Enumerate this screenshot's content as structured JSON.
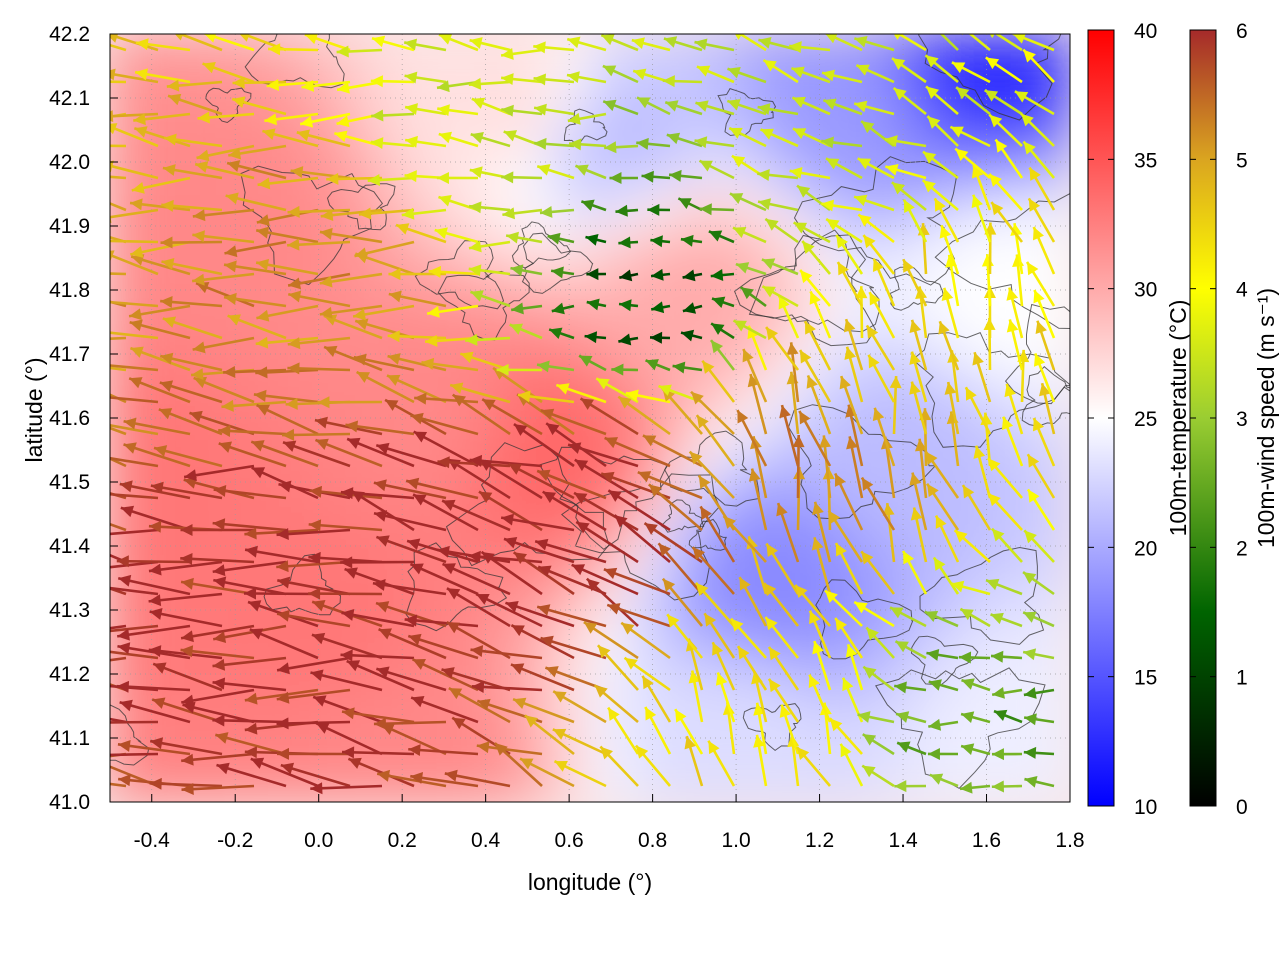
{
  "chart_data": {
    "type": "heatmap",
    "title": "",
    "xlabel": "longitude (°)",
    "ylabel": "latitude (°)",
    "xlim": [
      -0.5,
      1.8
    ],
    "ylim": [
      41.0,
      42.2
    ],
    "xticks": [
      "-0.4",
      "-0.2",
      "0.0",
      "0.2",
      "0.4",
      "0.6",
      "0.8",
      "1.0",
      "1.2",
      "1.4",
      "1.6",
      "1.8"
    ],
    "yticks": [
      "41.0",
      "41.1",
      "41.2",
      "41.3",
      "41.4",
      "41.5",
      "41.6",
      "41.7",
      "41.8",
      "41.9",
      "42.0",
      "42.1",
      "42.2"
    ],
    "grid": true,
    "temperature_colorbar": {
      "label": "100m-temperature (°C)",
      "range": [
        10,
        40
      ],
      "ticks": [
        "10",
        "15",
        "20",
        "25",
        "30",
        "35",
        "40"
      ],
      "colors": [
        "#0000ff",
        "#ffffff",
        "#ff0000"
      ]
    },
    "wind_colorbar": {
      "label": "100m-wind speed (m s⁻¹)",
      "range": [
        0,
        6
      ],
      "ticks": [
        "0",
        "1",
        "2",
        "3",
        "4",
        "5",
        "6"
      ],
      "colors": [
        "#000000",
        "#006400",
        "#9acd32",
        "#ffff00",
        "#daa520",
        "#a52a2a"
      ]
    },
    "temperature_regions": [
      {
        "lon": -0.4,
        "lat": 41.5,
        "t": 33
      },
      {
        "lon": -0.2,
        "lat": 41.9,
        "t": 32
      },
      {
        "lon": 0.0,
        "lat": 41.3,
        "t": 33
      },
      {
        "lon": 0.3,
        "lat": 41.6,
        "t": 32
      },
      {
        "lon": 0.55,
        "lat": 41.55,
        "t": 34
      },
      {
        "lon": 0.5,
        "lat": 42.1,
        "t": 27
      },
      {
        "lon": 0.7,
        "lat": 42.05,
        "t": 21
      },
      {
        "lon": 0.9,
        "lat": 41.8,
        "t": 30
      },
      {
        "lon": 1.1,
        "lat": 41.35,
        "t": 18
      },
      {
        "lon": 1.0,
        "lat": 41.1,
        "t": 23
      },
      {
        "lon": 1.4,
        "lat": 41.55,
        "t": 21
      },
      {
        "lon": 1.55,
        "lat": 42.18,
        "t": 12
      },
      {
        "lon": 1.3,
        "lat": 42.1,
        "t": 19
      },
      {
        "lon": 1.7,
        "lat": 41.1,
        "t": 24
      },
      {
        "lon": 1.65,
        "lat": 41.8,
        "t": 25
      },
      {
        "lon": 0.2,
        "lat": 41.05,
        "t": 32
      }
    ],
    "wind_field": {
      "note": "",
      "regions": [
        {
          "lon": 0.0,
          "lat": 41.3,
          "u": -5.5,
          "v": 0.6,
          "speed": 6
        },
        {
          "lon": 0.4,
          "lat": 41.4,
          "u": -5.0,
          "v": 1.5,
          "speed": 6
        },
        {
          "lon": 0.7,
          "lat": 41.45,
          "u": -4.5,
          "v": 2.0,
          "speed": 6
        },
        {
          "lon": 0.1,
          "lat": 41.85,
          "u": -4.5,
          "v": 0.3,
          "speed": 5
        },
        {
          "lon": 0.4,
          "lat": 42.0,
          "u": -2.5,
          "v": 0.2,
          "speed": 3
        },
        {
          "lon": 0.8,
          "lat": 41.8,
          "u": -1.0,
          "v": 0.0,
          "speed": 1
        },
        {
          "lon": 1.2,
          "lat": 41.5,
          "u": -0.6,
          "v": 2.5,
          "speed": 5
        },
        {
          "lon": 1.5,
          "lat": 41.7,
          "u": -0.5,
          "v": 2.0,
          "speed": 4
        },
        {
          "lon": 1.6,
          "lat": 41.1,
          "u": -1.8,
          "v": 0.2,
          "speed": 2
        },
        {
          "lon": 1.2,
          "lat": 42.0,
          "u": -1.5,
          "v": 0.6,
          "speed": 3
        },
        {
          "lon": 1.1,
          "lat": 41.1,
          "u": -0.8,
          "v": 2.0,
          "speed": 4
        }
      ]
    }
  }
}
